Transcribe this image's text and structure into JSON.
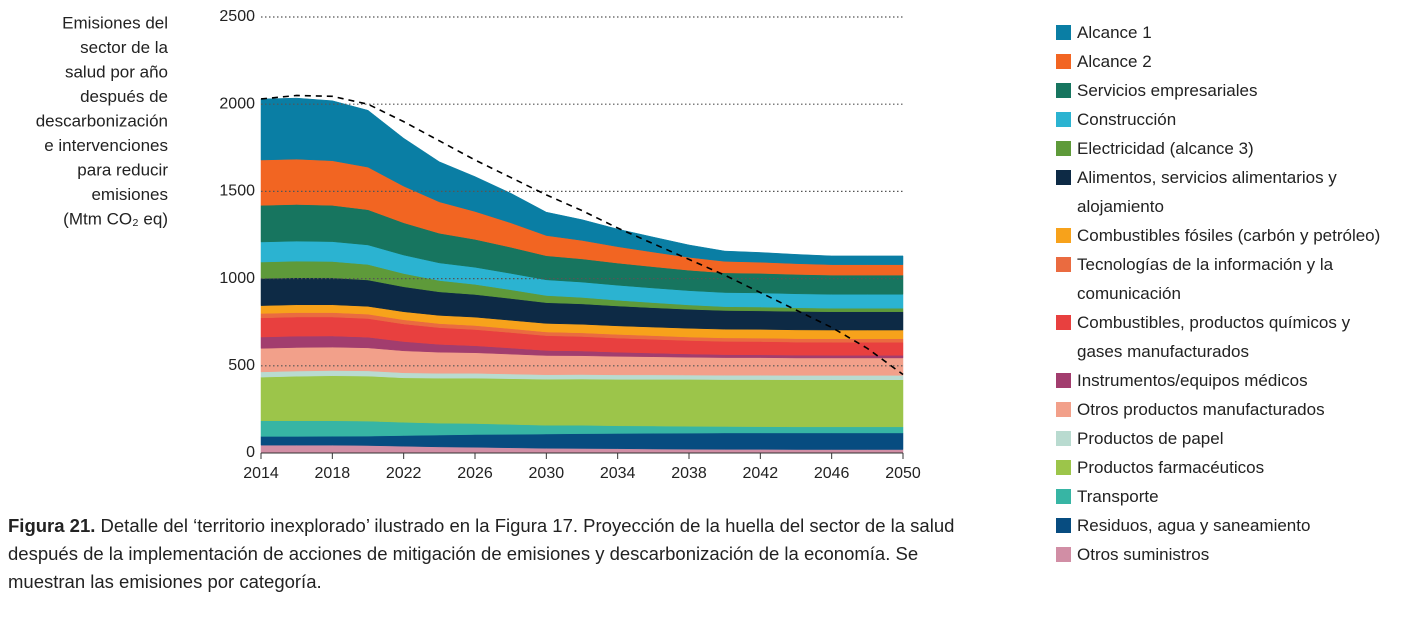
{
  "chart_data": {
    "type": "stacked_area",
    "ylabel_lines": [
      "Emisiones del",
      "sector de la",
      "salud por año",
      "después de",
      "descarbonización",
      "e intervenciones",
      "para reducir",
      "emisiones",
      "(Mtm CO₂ eq)"
    ],
    "caption": {
      "label": "Figura 21.",
      "text": " Detalle del ‘territorio inexplorado’ ilustrado en la Figura 17. Proyección de la huella del sector de la salud después de la implementación de acciones de mitigación de emisiones y descarbonización de la economía. Se muestran las emisiones por categoría."
    },
    "x": [
      2014,
      2016,
      2018,
      2020,
      2022,
      2024,
      2026,
      2028,
      2030,
      2032,
      2034,
      2036,
      2038,
      2040,
      2042,
      2044,
      2046,
      2048,
      2050
    ],
    "xlim": [
      2014,
      2050
    ],
    "xticks": [
      2014,
      2018,
      2022,
      2026,
      2030,
      2034,
      2038,
      2042,
      2046,
      2050
    ],
    "ylim": [
      0,
      2500
    ],
    "yticks": [
      0,
      500,
      1000,
      1500,
      2000,
      2500
    ],
    "grid": true,
    "series": [
      {
        "name": "Alcance 1",
        "color": "#0a7ea4",
        "values": [
          350,
          350,
          344,
          326,
          275,
          230,
          200,
          170,
          134,
          119,
          101,
          86,
          71,
          59,
          56,
          53,
          50,
          50,
          50
        ]
      },
      {
        "name": "Alcance 2",
        "color": "#f26522",
        "values": [
          260,
          260,
          256,
          244,
          210,
          180,
          160,
          140,
          116,
          106,
          94,
          84,
          74,
          66,
          64,
          62,
          60,
          60,
          60
        ]
      },
      {
        "name": "Servicios empresariales",
        "color": "#17755f",
        "values": [
          210,
          210,
          208,
          202,
          185,
          170,
          160,
          150,
          138,
          133,
          127,
          122,
          117,
          113,
          112,
          111,
          110,
          110,
          110
        ]
      },
      {
        "name": "Construcción",
        "color": "#2bb3d1",
        "values": [
          115,
          115,
          114,
          112,
          106,
          101,
          98,
          94,
          90,
          88,
          86,
          84,
          82,
          81,
          81,
          80,
          80,
          80,
          80
        ]
      },
      {
        "name": "Electricidad (alcance 3)",
        "color": "#5e9a3a",
        "values": [
          95,
          95,
          94,
          89,
          76,
          65,
          58,
          50,
          41,
          37,
          33,
          29,
          25,
          22,
          22,
          21,
          20,
          20,
          20
        ]
      },
      {
        "name": "Alimentos, servicios alimentarios y alojamiento",
        "color": "#0d2a45",
        "values": [
          155,
          155,
          154,
          151,
          143,
          135,
          130,
          125,
          119,
          117,
          114,
          111,
          109,
          107,
          106,
          106,
          105,
          105,
          105
        ]
      },
      {
        "name": "Combustibles fósiles (carbón y petróleo)",
        "color": "#f7a21b",
        "values": [
          45,
          45,
          45,
          45,
          46,
          47,
          48,
          48,
          49,
          49,
          49,
          49,
          50,
          50,
          50,
          50,
          50,
          50,
          50
        ]
      },
      {
        "name": "Tecnologías de la información y la comunicación",
        "color": "#ea6b40",
        "values": [
          25,
          25,
          25,
          25,
          24,
          23,
          23,
          22,
          21,
          21,
          21,
          21,
          20,
          20,
          20,
          20,
          20,
          20,
          20
        ]
      },
      {
        "name": "Combustibles, productos químicos y gases manufacturados",
        "color": "#e8403f",
        "values": [
          110,
          110,
          109,
          107,
          101,
          96,
          93,
          89,
          85,
          83,
          81,
          79,
          77,
          76,
          76,
          75,
          75,
          75,
          75
        ]
      },
      {
        "name": "Instrumentos/equipos médicos",
        "color": "#a23d6e",
        "values": [
          65,
          65,
          64,
          61,
          53,
          45,
          40,
          35,
          29,
          27,
          24,
          21,
          19,
          17,
          16,
          16,
          15,
          15,
          15
        ]
      },
      {
        "name": "Otros productos manufacturados",
        "color": "#f2a08a",
        "values": [
          135,
          135,
          134,
          132,
          126,
          121,
          118,
          114,
          110,
          108,
          106,
          104,
          102,
          101,
          101,
          100,
          100,
          100,
          100
        ]
      },
      {
        "name": "Productos de papel",
        "color": "#b9dbd0",
        "values": [
          30,
          30,
          30,
          30,
          29,
          28,
          28,
          27,
          26,
          26,
          26,
          26,
          25,
          25,
          25,
          25,
          25,
          25,
          25
        ]
      },
      {
        "name": "Productos farmacéuticos",
        "color": "#9cc54a",
        "values": [
          250,
          255,
          258,
          258,
          255,
          258,
          260,
          262,
          264,
          265,
          266,
          267,
          269,
          269,
          270,
          270,
          270,
          270,
          270
        ]
      },
      {
        "name": "Transporte",
        "color": "#37b5a4",
        "values": [
          90,
          90,
          89,
          86,
          76,
          68,
          63,
          57,
          50,
          48,
          44,
          42,
          39,
          37,
          36,
          35,
          35,
          35,
          35
        ]
      },
      {
        "name": "Residuos, agua y saneamiento",
        "color": "#074c80",
        "values": [
          50,
          50,
          51,
          54,
          61,
          68,
          73,
          77,
          82,
          85,
          87,
          90,
          92,
          94,
          94,
          95,
          95,
          95,
          95
        ]
      },
      {
        "name": "Otros suministros",
        "color": "#d18ea5",
        "values": [
          45,
          45,
          45,
          43,
          39,
          35,
          33,
          30,
          27,
          26,
          25,
          23,
          22,
          21,
          21,
          20,
          20,
          20,
          20
        ]
      }
    ],
    "dashed_line": {
      "color": "#000000",
      "values": [
        2030,
        2050,
        2045,
        2000,
        1900,
        1790,
        1680,
        1580,
        1480,
        1390,
        1290,
        1200,
        1110,
        1020,
        920,
        820,
        720,
        600,
        450
      ]
    }
  }
}
